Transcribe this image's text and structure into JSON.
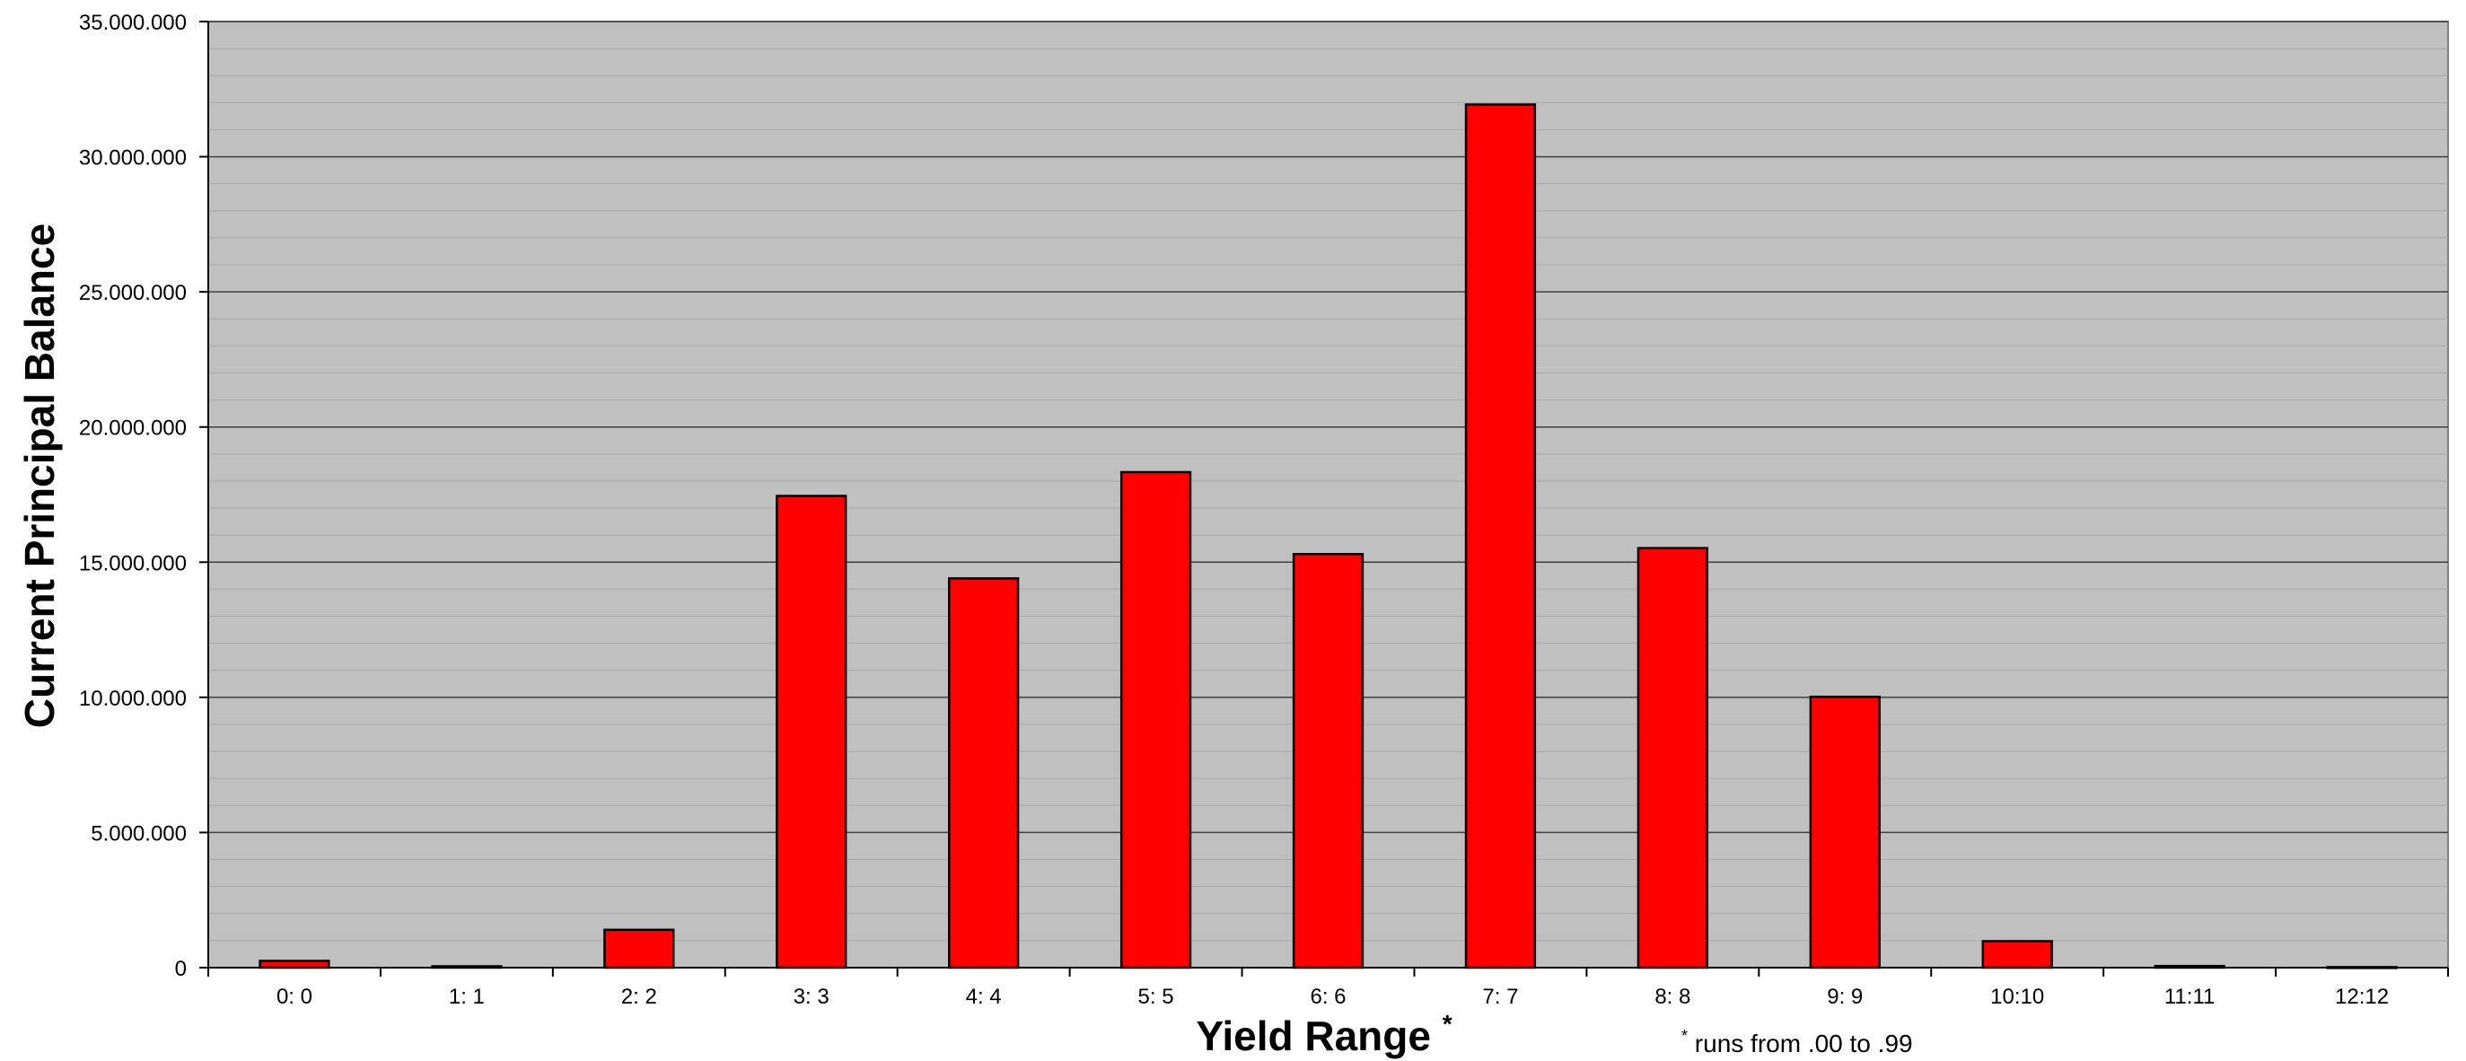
{
  "chart_data": {
    "type": "bar",
    "title": "",
    "xlabel": "Yield Range",
    "xlabel_marker": "*",
    "ylabel": "Current Principal Balance",
    "footnote_marker": "*",
    "footnote": "runs from .00 to .99",
    "categories": [
      "0: 0",
      "1: 1",
      "2: 2",
      "3: 3",
      "4: 4",
      "5: 5",
      "6: 6",
      "7: 7",
      "8: 8",
      "9: 9",
      "10:10",
      "11:11",
      "12:12"
    ],
    "values": [
      250000,
      50000,
      1400000,
      17450000,
      14400000,
      18330000,
      15300000,
      31930000,
      15520000,
      10020000,
      980000,
      60000,
      20000
    ],
    "ylim": [
      0,
      35000000
    ],
    "yticks": [
      0,
      5000000,
      10000000,
      15000000,
      20000000,
      25000000,
      30000000,
      35000000
    ],
    "ytick_labels": [
      "0",
      "5.000.000",
      "10.000.000",
      "15.000.000",
      "20.000.000",
      "25.000.000",
      "30.000.000",
      "35.000.000"
    ],
    "grid": true,
    "legend": "none",
    "bar_color": "#ff0000",
    "plot_background": "#c0c0c0"
  }
}
